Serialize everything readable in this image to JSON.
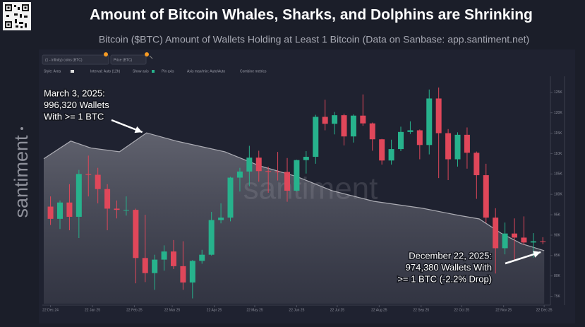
{
  "chart_data": {
    "type": "combo",
    "title": "Amount of Bitcoin Whales, Sharks, and Dolphins are Shrinking",
    "subtitle": "Bitcoin ($BTC) Amount of Wallets Holding at Least 1 Bitcoin (Data on Sanbase: app.santiment.net)",
    "watermark": "santiment",
    "controls": [
      "Style: Area",
      "Interval: Auto (12h)",
      "Show axis",
      "Pin axis",
      "Axis max/min: Auto/Auto",
      "Combine metrics"
    ],
    "xlim": [
      "2024-12-17",
      "2025-12-24"
    ],
    "xticks": [
      {
        "value": "2024-12-22",
        "label": "22 Dec 24"
      },
      {
        "value": "2025-01-22",
        "label": "22 Jan 25"
      },
      {
        "value": "2025-02-22",
        "label": "22 Feb 25"
      },
      {
        "value": "2025-03-22",
        "label": "22 Mar 25"
      },
      {
        "value": "2025-04-22",
        "label": "22 Apr 25"
      },
      {
        "value": "2025-05-22",
        "label": "22 May 25"
      },
      {
        "value": "2025-06-22",
        "label": "22 Jun 25"
      },
      {
        "value": "2025-07-22",
        "label": "22 Jul 25"
      },
      {
        "value": "2025-08-22",
        "label": "22 Aug 25"
      },
      {
        "value": "2025-09-22",
        "label": "22 Sep 25"
      },
      {
        "value": "2025-10-22",
        "label": "22 Oct 25"
      },
      {
        "value": "2025-11-22",
        "label": "22 Nov 25"
      },
      {
        "value": "2025-12-22",
        "label": "22 Dec 25"
      }
    ],
    "ylim": [
      73200,
      128600
    ],
    "yticks": [
      {
        "value": 75000,
        "label": "75K"
      },
      {
        "value": 80000,
        "label": "80K"
      },
      {
        "value": 85000,
        "label": "85K"
      },
      {
        "value": 90000,
        "label": "90K"
      },
      {
        "value": 95000,
        "label": "95K"
      },
      {
        "value": 100000,
        "label": "100K"
      },
      {
        "value": 105000,
        "label": "105K"
      },
      {
        "value": 110000,
        "label": "110K"
      },
      {
        "value": 115000,
        "label": "115K"
      },
      {
        "value": 120000,
        "label": "120K"
      },
      {
        "value": 125000,
        "label": "125K"
      }
    ],
    "y2lim": [
      964500,
      1006600
    ],
    "grid": false,
    "series": [
      {
        "name": "(1 - infinity) coins (BTC)",
        "type": "area",
        "axis": "y2",
        "color": "#c9c9cf",
        "x": [
          "2024-12-17",
          "2025-01-06",
          "2025-01-21",
          "2025-02-11",
          "2025-03-03",
          "2025-03-25",
          "2025-04-30",
          "2025-05-26",
          "2025-06-22",
          "2025-07-18",
          "2025-08-18",
          "2025-09-23",
          "2025-10-20",
          "2025-11-04",
          "2025-11-20",
          "2025-12-05",
          "2025-12-22"
        ],
        "values": [
          991500,
          994800,
          993500,
          992800,
          996320,
          994800,
          992800,
          990160,
          988190,
          985560,
          983580,
          982270,
          980950,
          980290,
          977660,
          975690,
          974380
        ]
      },
      {
        "name": "Price (BTC)",
        "type": "candlestick",
        "axis": "y",
        "up_color": "#27b28c",
        "down_color": "#e0475a",
        "x": [
          "2024-12-22",
          "2024-12-29",
          "2025-01-05",
          "2025-01-12",
          "2025-01-19",
          "2025-01-26",
          "2025-02-02",
          "2025-02-09",
          "2025-02-16",
          "2025-02-23",
          "2025-03-02",
          "2025-03-09",
          "2025-03-16",
          "2025-03-23",
          "2025-03-30",
          "2025-04-06",
          "2025-04-13",
          "2025-04-20",
          "2025-04-27",
          "2025-05-04",
          "2025-05-11",
          "2025-05-18",
          "2025-05-25",
          "2025-06-01",
          "2025-06-08",
          "2025-06-15",
          "2025-06-22",
          "2025-06-29",
          "2025-07-06",
          "2025-07-13",
          "2025-07-20",
          "2025-07-27",
          "2025-08-03",
          "2025-08-10",
          "2025-08-17",
          "2025-08-24",
          "2025-08-31",
          "2025-09-07",
          "2025-09-14",
          "2025-09-21",
          "2025-09-28",
          "2025-10-05",
          "2025-10-12",
          "2025-10-19",
          "2025-10-26",
          "2025-11-02",
          "2025-11-09",
          "2025-11-16",
          "2025-11-23",
          "2025-11-30",
          "2025-12-07",
          "2025-12-14",
          "2025-12-21"
        ],
        "open": [
          97000,
          94000,
          98000,
          94500,
          105000,
          104800,
          101300,
          96500,
          96200,
          96200,
          84400,
          80700,
          84000,
          86000,
          82400,
          78400,
          83700,
          85200,
          93700,
          94300,
          104100,
          105600,
          109000,
          105700,
          105600,
          105500,
          100900,
          108400,
          109200,
          119000,
          117300,
          119400,
          114200,
          119300,
          117400,
          113500,
          108300,
          111100,
          115300,
          115700,
          112100,
          123500,
          115000,
          108600,
          114600,
          110200,
          104700,
          94300,
          86800,
          90400,
          89400,
          88200,
          88500
        ],
        "high": [
          99500,
          98500,
          102500,
          106000,
          109500,
          106500,
          102500,
          98500,
          99500,
          96500,
          95000,
          85200,
          87500,
          88800,
          88500,
          83900,
          86400,
          95700,
          97800,
          104300,
          106500,
          111900,
          110700,
          106800,
          110400,
          108900,
          108500,
          110600,
          119500,
          123200,
          120200,
          119800,
          119600,
          124500,
          117600,
          113600,
          113400,
          116600,
          117900,
          115900,
          125700,
          126200,
          116000,
          115200,
          116400,
          110500,
          107500,
          96600,
          93100,
          94100,
          94600,
          90500,
          89500
        ],
        "low": [
          92500,
          91500,
          91200,
          89300,
          99500,
          97800,
          91200,
          94100,
          94800,
          78200,
          78500,
          76600,
          81300,
          81700,
          76600,
          74500,
          83000,
          85000,
          92900,
          93400,
          100700,
          102000,
          103100,
          100400,
          103400,
          98200,
          100700,
          105100,
          107500,
          115700,
          114700,
          112000,
          112700,
          116800,
          110700,
          107300,
          107300,
          110600,
          114800,
          108600,
          109800,
          104000,
          103500,
          106800,
          106300,
          98900,
          93000,
          80600,
          85300,
          83800,
          87600,
          84500,
          87800
        ],
        "close": [
          94000,
          98000,
          94500,
          105000,
          104800,
          101300,
          96500,
          96200,
          96200,
          84400,
          80700,
          84000,
          86000,
          82400,
          78400,
          83700,
          85200,
          93700,
          94300,
          104100,
          105600,
          109000,
          105700,
          105600,
          105500,
          100900,
          108400,
          109200,
          119000,
          117300,
          119400,
          114200,
          119300,
          117400,
          113500,
          108300,
          111100,
          115300,
          115700,
          112100,
          123500,
          115000,
          108600,
          114600,
          110200,
          104700,
          94300,
          86800,
          90400,
          89400,
          88200,
          88500,
          88400
        ]
      }
    ],
    "annotations": [
      {
        "lines": [
          "March 3, 2025:",
          "996,320 Wallets",
          "With >= 1 BTC"
        ]
      },
      {
        "lines": [
          "December 22, 2025:",
          "974,380 Wallets With",
          ">= 1 BTC (-2.2% Drop)"
        ]
      }
    ]
  }
}
